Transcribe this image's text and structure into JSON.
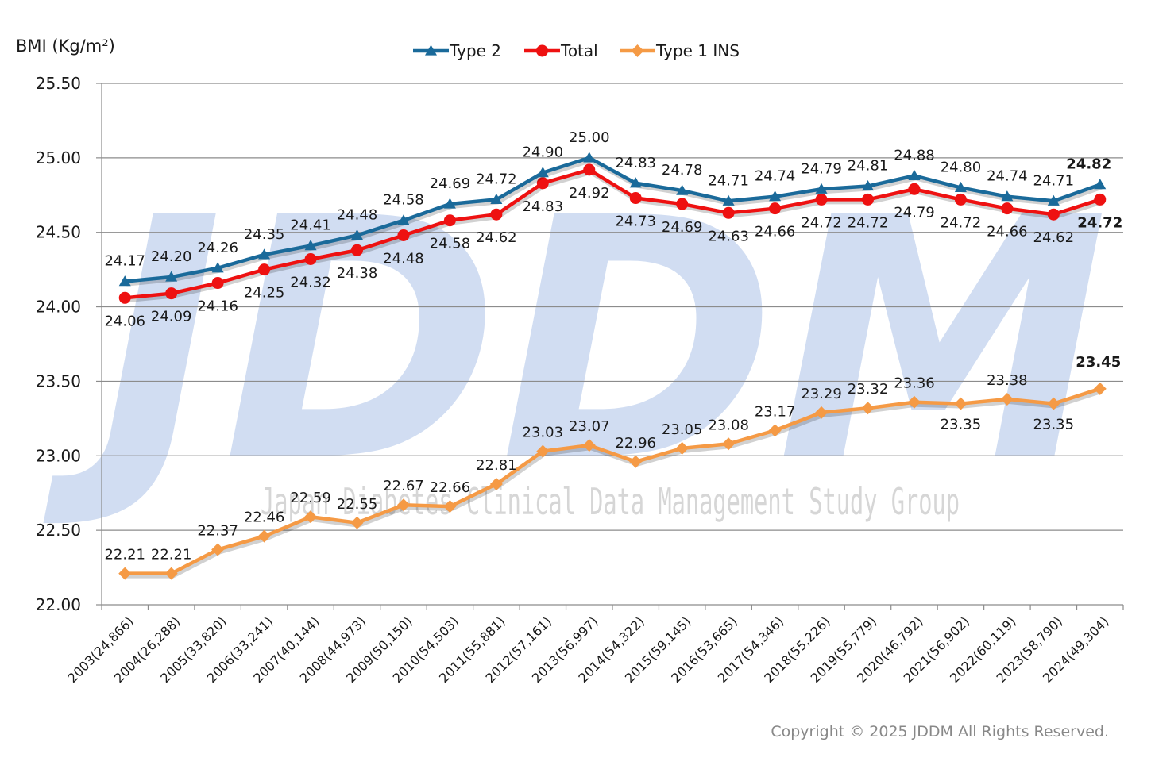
{
  "watermark": {
    "logo": "JDDM",
    "subtitle": "Japan Diabetes Clinical Data Management Study Group"
  },
  "copyright": "Copyright © 2025 JDDM All Rights Reserved.",
  "chart_data": {
    "type": "line",
    "ylabel": "BMI (Kg/m²)",
    "xlabel": "",
    "ylim": [
      22.0,
      25.5
    ],
    "yticks": [
      "25.50",
      "25.00",
      "24.50",
      "24.00",
      "23.50",
      "23.00",
      "22.50",
      "22.00"
    ],
    "yticks_values": [
      25.5,
      25.0,
      24.5,
      24.0,
      23.5,
      23.0,
      22.5,
      22.0
    ],
    "grid": "horizontal",
    "legend_position": "top-center",
    "categories": [
      "2003(24,866)",
      "2004(26,288)",
      "2005(33,820)",
      "2006(33,241)",
      "2007(40,144)",
      "2008(44,973)",
      "2009(50,150)",
      "2010(54,503)",
      "2011(55,881)",
      "2012(57,161)",
      "2013(56,997)",
      "2014(54,322)",
      "2015(59,145)",
      "2016(53,665)",
      "2017(54,346)",
      "2018(55,226)",
      "2019(55,779)",
      "2020(46,792)",
      "2021(56,902)",
      "2022(60,119)",
      "2023(58,790)",
      "2024(49,304)"
    ],
    "series": [
      {
        "name": "Type 2",
        "color": "#1a6a9a",
        "marker": "triangle",
        "values": [
          24.17,
          24.2,
          24.26,
          24.35,
          24.41,
          24.48,
          24.58,
          24.69,
          24.72,
          24.9,
          25.0,
          24.83,
          24.78,
          24.71,
          24.74,
          24.79,
          24.81,
          24.88,
          24.8,
          24.74,
          24.71,
          24.82
        ],
        "labels": [
          "24.17",
          "24.20",
          "24.26",
          "24.35",
          "24.41",
          "24.48",
          "24.58",
          "24.69",
          "24.72",
          "24.90",
          "25.00",
          "24.83",
          "24.78",
          "24.71",
          "24.74",
          "24.79",
          "24.81",
          "24.88",
          "24.80",
          "24.74",
          "24.71",
          "24.82"
        ]
      },
      {
        "name": "Total",
        "color": "#ee1111",
        "marker": "circle",
        "values": [
          24.06,
          24.09,
          24.16,
          24.25,
          24.32,
          24.38,
          24.48,
          24.58,
          24.62,
          24.83,
          24.92,
          24.73,
          24.69,
          24.63,
          24.66,
          24.72,
          24.72,
          24.79,
          24.72,
          24.66,
          24.62,
          24.72
        ],
        "labels": [
          "24.06",
          "24.09",
          "24.16",
          "24.25",
          "24.32",
          "24.38",
          "24.48",
          "24.58",
          "24.62",
          "24.83",
          "24.92",
          "24.73",
          "24.69",
          "24.63",
          "24.66",
          "24.72",
          "24.72",
          "24.79",
          "24.72",
          "24.66",
          "24.62",
          "24.72"
        ]
      },
      {
        "name": "Type 1 INS",
        "color": "#f59a45",
        "marker": "diamond",
        "values": [
          22.21,
          22.21,
          22.37,
          22.46,
          22.59,
          22.55,
          22.67,
          22.66,
          22.81,
          23.03,
          23.07,
          22.96,
          23.05,
          23.08,
          23.17,
          23.29,
          23.32,
          23.36,
          23.35,
          23.38,
          23.35,
          23.45
        ],
        "labels": [
          "22.21",
          "22.21",
          "22.37",
          "22.46",
          "22.59",
          "22.55",
          "22.67",
          "22.66",
          "22.81",
          "23.03",
          "23.07",
          "22.96",
          "23.05",
          "23.08",
          "23.17",
          "23.29",
          "23.32",
          "23.36",
          "23.35",
          "23.38",
          "23.35",
          "23.45"
        ]
      }
    ]
  }
}
